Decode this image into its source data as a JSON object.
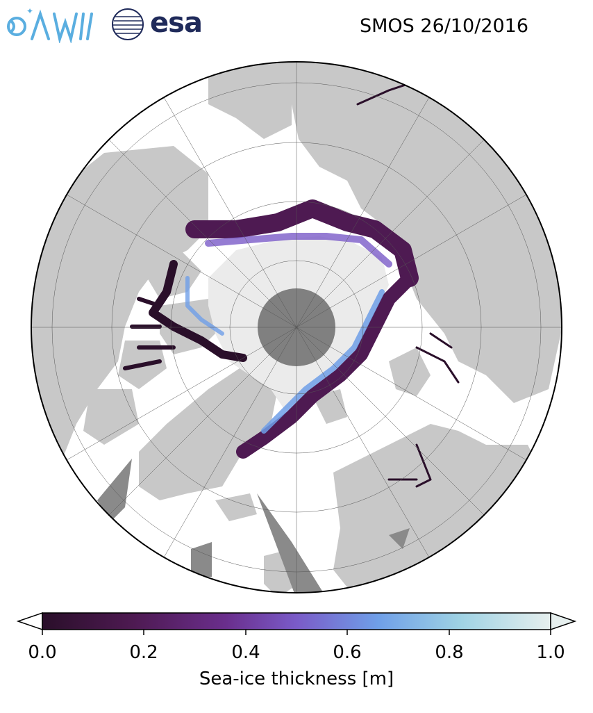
{
  "header": {
    "title": "SMOS 26/10/2016",
    "logo_awi": "AWI",
    "logo_esa": "esa"
  },
  "map": {
    "projection": "north-polar-stereographic",
    "land_color": "#c8c8c8",
    "ocean_color": "#ffffff",
    "thick_ice_color": "#ebebeb",
    "pole_hole_color": "#808080",
    "gridlines": true
  },
  "colorbar": {
    "label": "Sea-ice thickness [m]",
    "min": 0.0,
    "max": 1.0,
    "extend": "both",
    "ticks": [
      "0.0",
      "0.2",
      "0.4",
      "0.6",
      "0.8",
      "1.0"
    ],
    "colors": [
      "#2a0f2a",
      "#4e1a52",
      "#6a2e8c",
      "#7a5bc8",
      "#6f9fe8",
      "#9ed2e4",
      "#e6efee"
    ]
  }
}
